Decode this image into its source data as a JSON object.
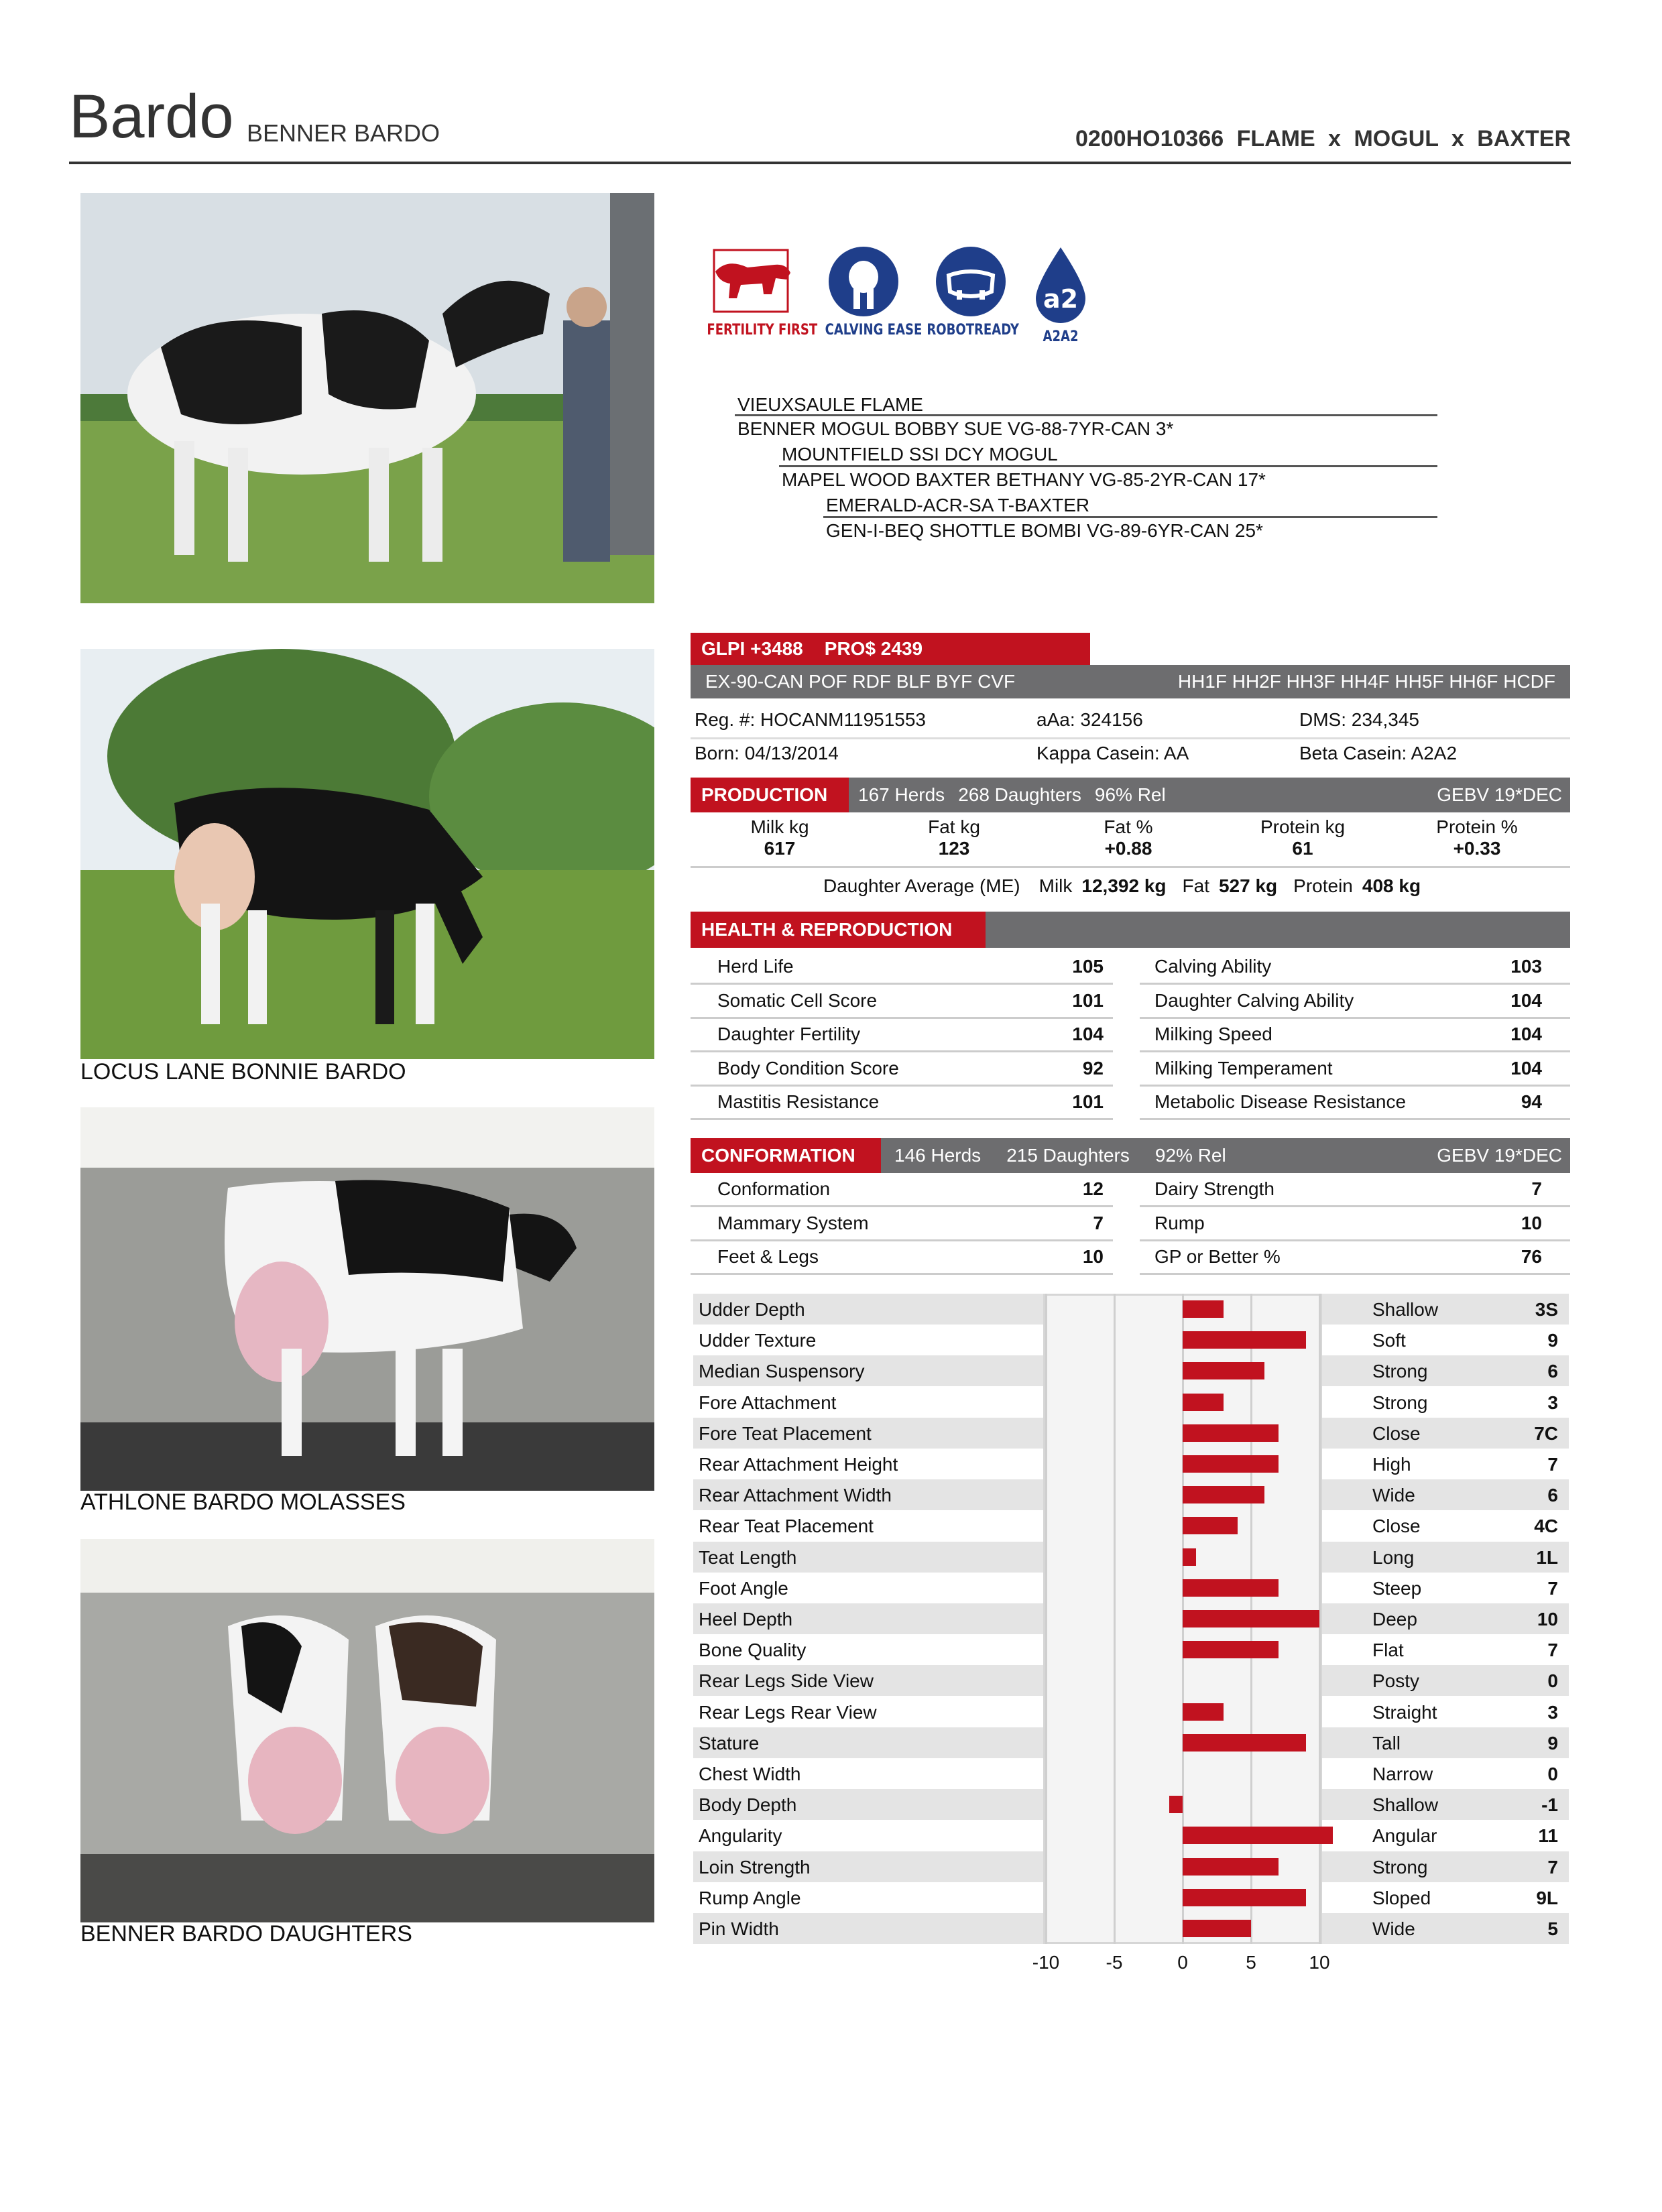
{
  "header": {
    "short_name": "Bardo",
    "registered_name": "BENNER BARDO",
    "code": "0200HO10366",
    "pedigree_short": "FLAME x MOGUL x BAXTER"
  },
  "photos": [
    {
      "caption": ""
    },
    {
      "caption": "LOCUS LANE BONNIE BARDO"
    },
    {
      "caption": "ATHLONE BARDO MOLASSES"
    },
    {
      "caption": "BENNER BARDO DAUGHTERS"
    }
  ],
  "logos": [
    {
      "label": "FERTILITY FIRST",
      "icon": "bull-icon",
      "color": "#c1121f"
    },
    {
      "label": "CALVING EASE",
      "icon": "calf-icon",
      "color": "#1f3e8a"
    },
    {
      "label": "ROBOTREADY",
      "icon": "udder-icon",
      "color": "#1f3e8a"
    },
    {
      "label": "A2A2",
      "icon": "a2-drop-icon",
      "color": "#1f3e8a",
      "mark": "a2"
    }
  ],
  "pedigree": [
    "VIEUXSAULE FLAME",
    "BENNER MOGUL BOBBY SUE VG-88-7YR-CAN 3*",
    "MOUNTFIELD SSI DCY MOGUL",
    "MAPEL WOOD BAXTER BETHANY VG-85-2YR-CAN 17*",
    "EMERALD-ACR-SA T-BAXTER",
    "GEN-I-BEQ SHOTTLE BOMBI VG-89-6YR-CAN 25*"
  ],
  "indexes": {
    "glpi": "GLPI +3488",
    "pro": "PRO$ 2439"
  },
  "classification": {
    "left": "EX-90-CAN POF RDF BLF BYF CVF",
    "right": "HH1F HH2F HH3F HH4F HH5F HH6F HCDF"
  },
  "info": {
    "reg": "Reg. #: HOCANM11951553",
    "aaa": "aAa: 324156",
    "dms": "DMS: 234,345",
    "born": "Born: 04/13/2014",
    "kappa": "Kappa Casein: AA",
    "beta": "Beta Casein: A2A2"
  },
  "production": {
    "title": "PRODUCTION",
    "herds": "167 Herds",
    "daughters": "268 Daughters",
    "rel": "96% Rel",
    "gebv": "GEBV 19*DEC",
    "cols": [
      {
        "label": "Milk kg",
        "value": "617"
      },
      {
        "label": "Fat kg",
        "value": "123"
      },
      {
        "label": "Fat %",
        "value": "+0.88"
      },
      {
        "label": "Protein kg",
        "value": "61"
      },
      {
        "label": "Protein %",
        "value": "+0.33"
      }
    ],
    "dau_avg_label": "Daughter Average (ME)",
    "milk_label": "Milk",
    "milk_value": "12,392 kg",
    "fat_label": "Fat",
    "fat_value": "527 kg",
    "protein_label": "Protein",
    "protein_value": "408 kg"
  },
  "health": {
    "title": "HEALTH & REPRODUCTION",
    "left": [
      {
        "label": "Herd Life",
        "value": "105"
      },
      {
        "label": "Somatic Cell Score",
        "value": "101"
      },
      {
        "label": "Daughter Fertility",
        "value": "104"
      },
      {
        "label": "Body Condition Score",
        "value": "92"
      },
      {
        "label": "Mastitis Resistance",
        "value": "101"
      }
    ],
    "right": [
      {
        "label": "Calving Ability",
        "value": "103"
      },
      {
        "label": "Daughter Calving Ability",
        "value": "104"
      },
      {
        "label": "Milking Speed",
        "value": "104"
      },
      {
        "label": "Milking Temperament",
        "value": "104"
      },
      {
        "label": "Metabolic Disease Resistance",
        "value": "94"
      }
    ]
  },
  "conformation": {
    "title": "CONFORMATION",
    "herds": "146 Herds",
    "daughters": "215 Daughters",
    "rel": "92% Rel",
    "gebv": "GEBV 19*DEC",
    "left": [
      {
        "label": "Conformation",
        "value": "12"
      },
      {
        "label": "Mammary System",
        "value": "7"
      },
      {
        "label": "Feet & Legs",
        "value": "10"
      }
    ],
    "right": [
      {
        "label": "Dairy Strength",
        "value": "7"
      },
      {
        "label": "Rump",
        "value": "10"
      },
      {
        "label": "GP or Better %",
        "value": "76"
      }
    ]
  },
  "chart_data": {
    "type": "bar",
    "orientation": "horizontal",
    "title": "",
    "xlim": [
      -10,
      10
    ],
    "xticks": [
      "-10",
      "-5",
      "0",
      "5",
      "10"
    ],
    "grid": true,
    "bar_color": "#c1121f",
    "categories": [
      "Udder Depth",
      "Udder Texture",
      "Median Suspensory",
      "Fore Attachment",
      "Fore Teat Placement",
      "Rear Attachment Height",
      "Rear Attachment Width",
      "Rear Teat Placement",
      "Teat Length",
      "Foot Angle",
      "Heel Depth",
      "Bone Quality",
      "Rear Legs Side View",
      "Rear Legs Rear View",
      "Stature",
      "Chest Width",
      "Body Depth",
      "Angularity",
      "Loin Strength",
      "Rump Angle",
      "Pin Width"
    ],
    "values": [
      3,
      9,
      6,
      3,
      7,
      7,
      6,
      4,
      1,
      7,
      10,
      7,
      0,
      3,
      9,
      0,
      -1,
      11,
      7,
      9,
      5
    ],
    "end_labels": [
      "Shallow",
      "Soft",
      "Strong",
      "Strong",
      "Close",
      "High",
      "Wide",
      "Close",
      "Long",
      "Steep",
      "Deep",
      "Flat",
      "Posty",
      "Straight",
      "Tall",
      "Narrow",
      "Shallow",
      "Angular",
      "Strong",
      "Sloped",
      "Wide"
    ],
    "display_values": [
      "3S",
      "9",
      "6",
      "3",
      "7C",
      "7",
      "6",
      "4C",
      "1L",
      "7",
      "10",
      "7",
      "0",
      "3",
      "9",
      "0",
      "-1",
      "11",
      "7",
      "9L",
      "5"
    ]
  }
}
